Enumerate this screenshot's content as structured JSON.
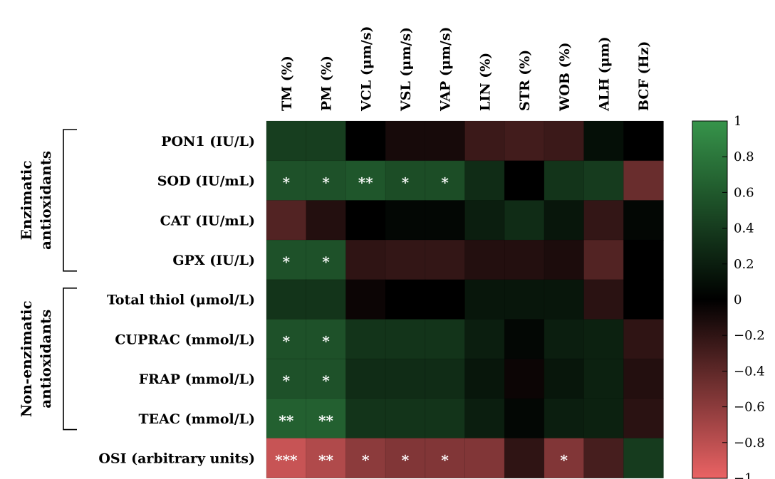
{
  "chart_data": {
    "type": "heatmap",
    "columns": [
      "TM (%)",
      "PM (%)",
      "VCL (μm/s)",
      "VSL (μm/s)",
      "VAP (μm/s)",
      "LIN (%)",
      "STR (%)",
      "WOB (%)",
      "ALH (μm)",
      "BCF (Hz)"
    ],
    "rows": [
      "PON1 (IU/L)",
      "SOD (IU/mL)",
      "CAT (IU/mL)",
      "GPX (IU/L)",
      "Total thiol (μmol/L)",
      "CUPRAC (mmol/L)",
      "FRAP (mmol/L)",
      "TEAC (mmol/L)",
      "OSI (arbitrary units)"
    ],
    "values": [
      [
        0.42,
        0.42,
        0.0,
        -0.1,
        -0.1,
        -0.25,
        -0.28,
        -0.25,
        0.1,
        0.0
      ],
      [
        0.55,
        0.55,
        0.58,
        0.52,
        0.52,
        0.3,
        0.0,
        0.35,
        0.4,
        -0.45
      ],
      [
        -0.35,
        -0.15,
        0.0,
        0.05,
        0.05,
        0.2,
        0.3,
        0.15,
        -0.22,
        0.05
      ],
      [
        0.55,
        0.55,
        -0.2,
        -0.22,
        -0.22,
        -0.15,
        -0.15,
        -0.12,
        -0.35,
        0.0
      ],
      [
        0.35,
        0.35,
        -0.05,
        0.0,
        0.0,
        0.15,
        0.15,
        0.15,
        -0.18,
        0.0
      ],
      [
        0.55,
        0.55,
        0.35,
        0.35,
        0.35,
        0.2,
        0.05,
        0.2,
        0.22,
        -0.2
      ],
      [
        0.55,
        0.55,
        0.3,
        0.3,
        0.3,
        0.15,
        -0.05,
        0.15,
        0.22,
        -0.15
      ],
      [
        0.65,
        0.65,
        0.35,
        0.35,
        0.35,
        0.2,
        0.05,
        0.2,
        0.22,
        -0.18
      ],
      [
        -0.85,
        -0.75,
        -0.6,
        -0.55,
        -0.55,
        -0.55,
        -0.2,
        -0.55,
        -0.3,
        0.4
      ]
    ],
    "significance": [
      [
        "",
        "",
        "",
        "",
        "",
        "",
        "",
        "",
        "",
        ""
      ],
      [
        "*",
        "*",
        "**",
        "*",
        "*",
        "",
        "",
        "",
        "",
        ""
      ],
      [
        "",
        "",
        "",
        "",
        "",
        "",
        "",
        "",
        "",
        ""
      ],
      [
        "*",
        "*",
        "",
        "",
        "",
        "",
        "",
        "",
        "",
        ""
      ],
      [
        "",
        "",
        "",
        "",
        "",
        "",
        "",
        "",
        "",
        ""
      ],
      [
        "*",
        "*",
        "",
        "",
        "",
        "",
        "",
        "",
        "",
        ""
      ],
      [
        "*",
        "*",
        "",
        "",
        "",
        "",
        "",
        "",
        "",
        ""
      ],
      [
        "**",
        "**",
        "",
        "",
        "",
        "",
        "",
        "",
        "",
        ""
      ],
      [
        "***",
        "**",
        "*",
        "*",
        "*",
        "",
        "",
        "*",
        "",
        ""
      ]
    ],
    "groups": [
      {
        "label_lines": [
          "Enzimatic",
          "antioxidants"
        ],
        "rows": [
          0,
          3
        ]
      },
      {
        "label_lines": [
          "Non-enzimatic",
          "antioxidants"
        ],
        "rows": [
          4,
          7
        ]
      }
    ],
    "colorbar": {
      "range": [
        -1,
        1
      ],
      "ticks": [
        "1",
        "0.8",
        "0.6",
        "0.4",
        "0.2",
        "0",
        "−0.2",
        "−0.4",
        "−0.6",
        "−0.8",
        "−1"
      ],
      "high_color": "#36944a",
      "mid_color": "#000000",
      "low_color": "#ea6364"
    }
  }
}
